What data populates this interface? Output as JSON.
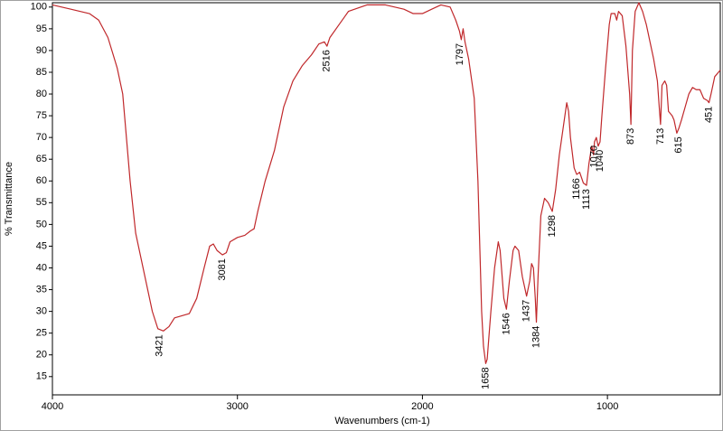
{
  "chart_data": {
    "type": "line",
    "x_label": "Wavenumbers (cm-1)",
    "y_label": "% Transmittance",
    "xlim": [
      4000,
      390
    ],
    "ylim": [
      10.8,
      101
    ],
    "xticks": [
      4000,
      3000,
      2000,
      1000
    ],
    "yticks": [
      15,
      20,
      25,
      30,
      35,
      40,
      45,
      50,
      55,
      60,
      65,
      70,
      75,
      80,
      85,
      90,
      95,
      100
    ],
    "x_reversed": true,
    "grid": false,
    "color": "#c0282b",
    "x": [
      4000,
      3900,
      3800,
      3750,
      3700,
      3650,
      3620,
      3600,
      3580,
      3550,
      3500,
      3460,
      3430,
      3400,
      3370,
      3340,
      3300,
      3260,
      3220,
      3180,
      3150,
      3130,
      3110,
      3081,
      3060,
      3040,
      3000,
      2960,
      2930,
      2910,
      2890,
      2850,
      2800,
      2750,
      2700,
      2650,
      2600,
      2560,
      2530,
      2516,
      2500,
      2450,
      2400,
      2300,
      2200,
      2100,
      2050,
      2000,
      1950,
      1900,
      1850,
      1820,
      1800,
      1790,
      1780,
      1770,
      1750,
      1720,
      1700,
      1680,
      1670,
      1658,
      1650,
      1630,
      1610,
      1590,
      1580,
      1560,
      1546,
      1530,
      1510,
      1500,
      1480,
      1460,
      1437,
      1420,
      1410,
      1400,
      1390,
      1384,
      1375,
      1360,
      1340,
      1320,
      1298,
      1280,
      1260,
      1240,
      1220,
      1210,
      1200,
      1180,
      1166,
      1150,
      1130,
      1113,
      1100,
      1085,
      1075,
      1070,
      1060,
      1050,
      1040,
      1030,
      1010,
      990,
      980,
      960,
      950,
      940,
      920,
      900,
      880,
      873,
      865,
      850,
      830,
      810,
      790,
      770,
      750,
      730,
      720,
      713,
      705,
      690,
      680,
      670,
      650,
      640,
      625,
      615,
      600,
      580,
      560,
      540,
      520,
      500,
      480,
      460,
      451,
      440,
      420,
      400,
      390
    ],
    "values": [
      100.5,
      99.5,
      98.5,
      97,
      93,
      86,
      80,
      70,
      60,
      48,
      38,
      30,
      26,
      25.5,
      26.5,
      28.5,
      29,
      29.5,
      33,
      40,
      45,
      45.5,
      44,
      43,
      43.5,
      46,
      47,
      47.5,
      48.5,
      49,
      53,
      60,
      67,
      77,
      83,
      86.5,
      89,
      91.5,
      92,
      91,
      93,
      96,
      99,
      100.5,
      100.5,
      99.5,
      98.5,
      98.5,
      99.5,
      100.5,
      100,
      97,
      94.5,
      92.5,
      95,
      92,
      88,
      79,
      60,
      30,
      22,
      18,
      19,
      30,
      40,
      46,
      44,
      33,
      30.5,
      37,
      44,
      45,
      44,
      38,
      33.5,
      37,
      41,
      40,
      33,
      27.5,
      38,
      52,
      56,
      55,
      53,
      58,
      66,
      72,
      78,
      76,
      70,
      63,
      61.5,
      62,
      59.5,
      59,
      64,
      68,
      66,
      69,
      70,
      68,
      69,
      75,
      86,
      96,
      98.5,
      98.5,
      97,
      99,
      98,
      91,
      80,
      73,
      90,
      99,
      101,
      99,
      96,
      92,
      88,
      83,
      77,
      73,
      82,
      83,
      82,
      76,
      75,
      74,
      71,
      72,
      74,
      77,
      80,
      81.5,
      81,
      81,
      79,
      78.5,
      78,
      80,
      84,
      85,
      85.5
    ],
    "annotations": [
      {
        "text": "3421",
        "x": 3421,
        "y": 25.5
      },
      {
        "text": "3081",
        "x": 3081,
        "y": 43
      },
      {
        "text": "2516",
        "x": 2516,
        "y": 91
      },
      {
        "text": "1797",
        "x": 1797,
        "y": 92.5
      },
      {
        "text": "1658",
        "x": 1658,
        "y": 18
      },
      {
        "text": "1546",
        "x": 1546,
        "y": 30.5
      },
      {
        "text": "1437",
        "x": 1437,
        "y": 33.5
      },
      {
        "text": "1384",
        "x": 1384,
        "y": 27.5
      },
      {
        "text": "1298",
        "x": 1298,
        "y": 53
      },
      {
        "text": "1166",
        "x": 1166,
        "y": 61.5
      },
      {
        "text": "1113",
        "x": 1113,
        "y": 59
      },
      {
        "text": "1070",
        "x": 1070,
        "y": 69
      },
      {
        "text": "1040",
        "x": 1040,
        "y": 68
      },
      {
        "text": "873",
        "x": 873,
        "y": 73
      },
      {
        "text": "713",
        "x": 713,
        "y": 73
      },
      {
        "text": "615",
        "x": 615,
        "y": 71
      },
      {
        "text": "451",
        "x": 451,
        "y": 78
      }
    ]
  }
}
